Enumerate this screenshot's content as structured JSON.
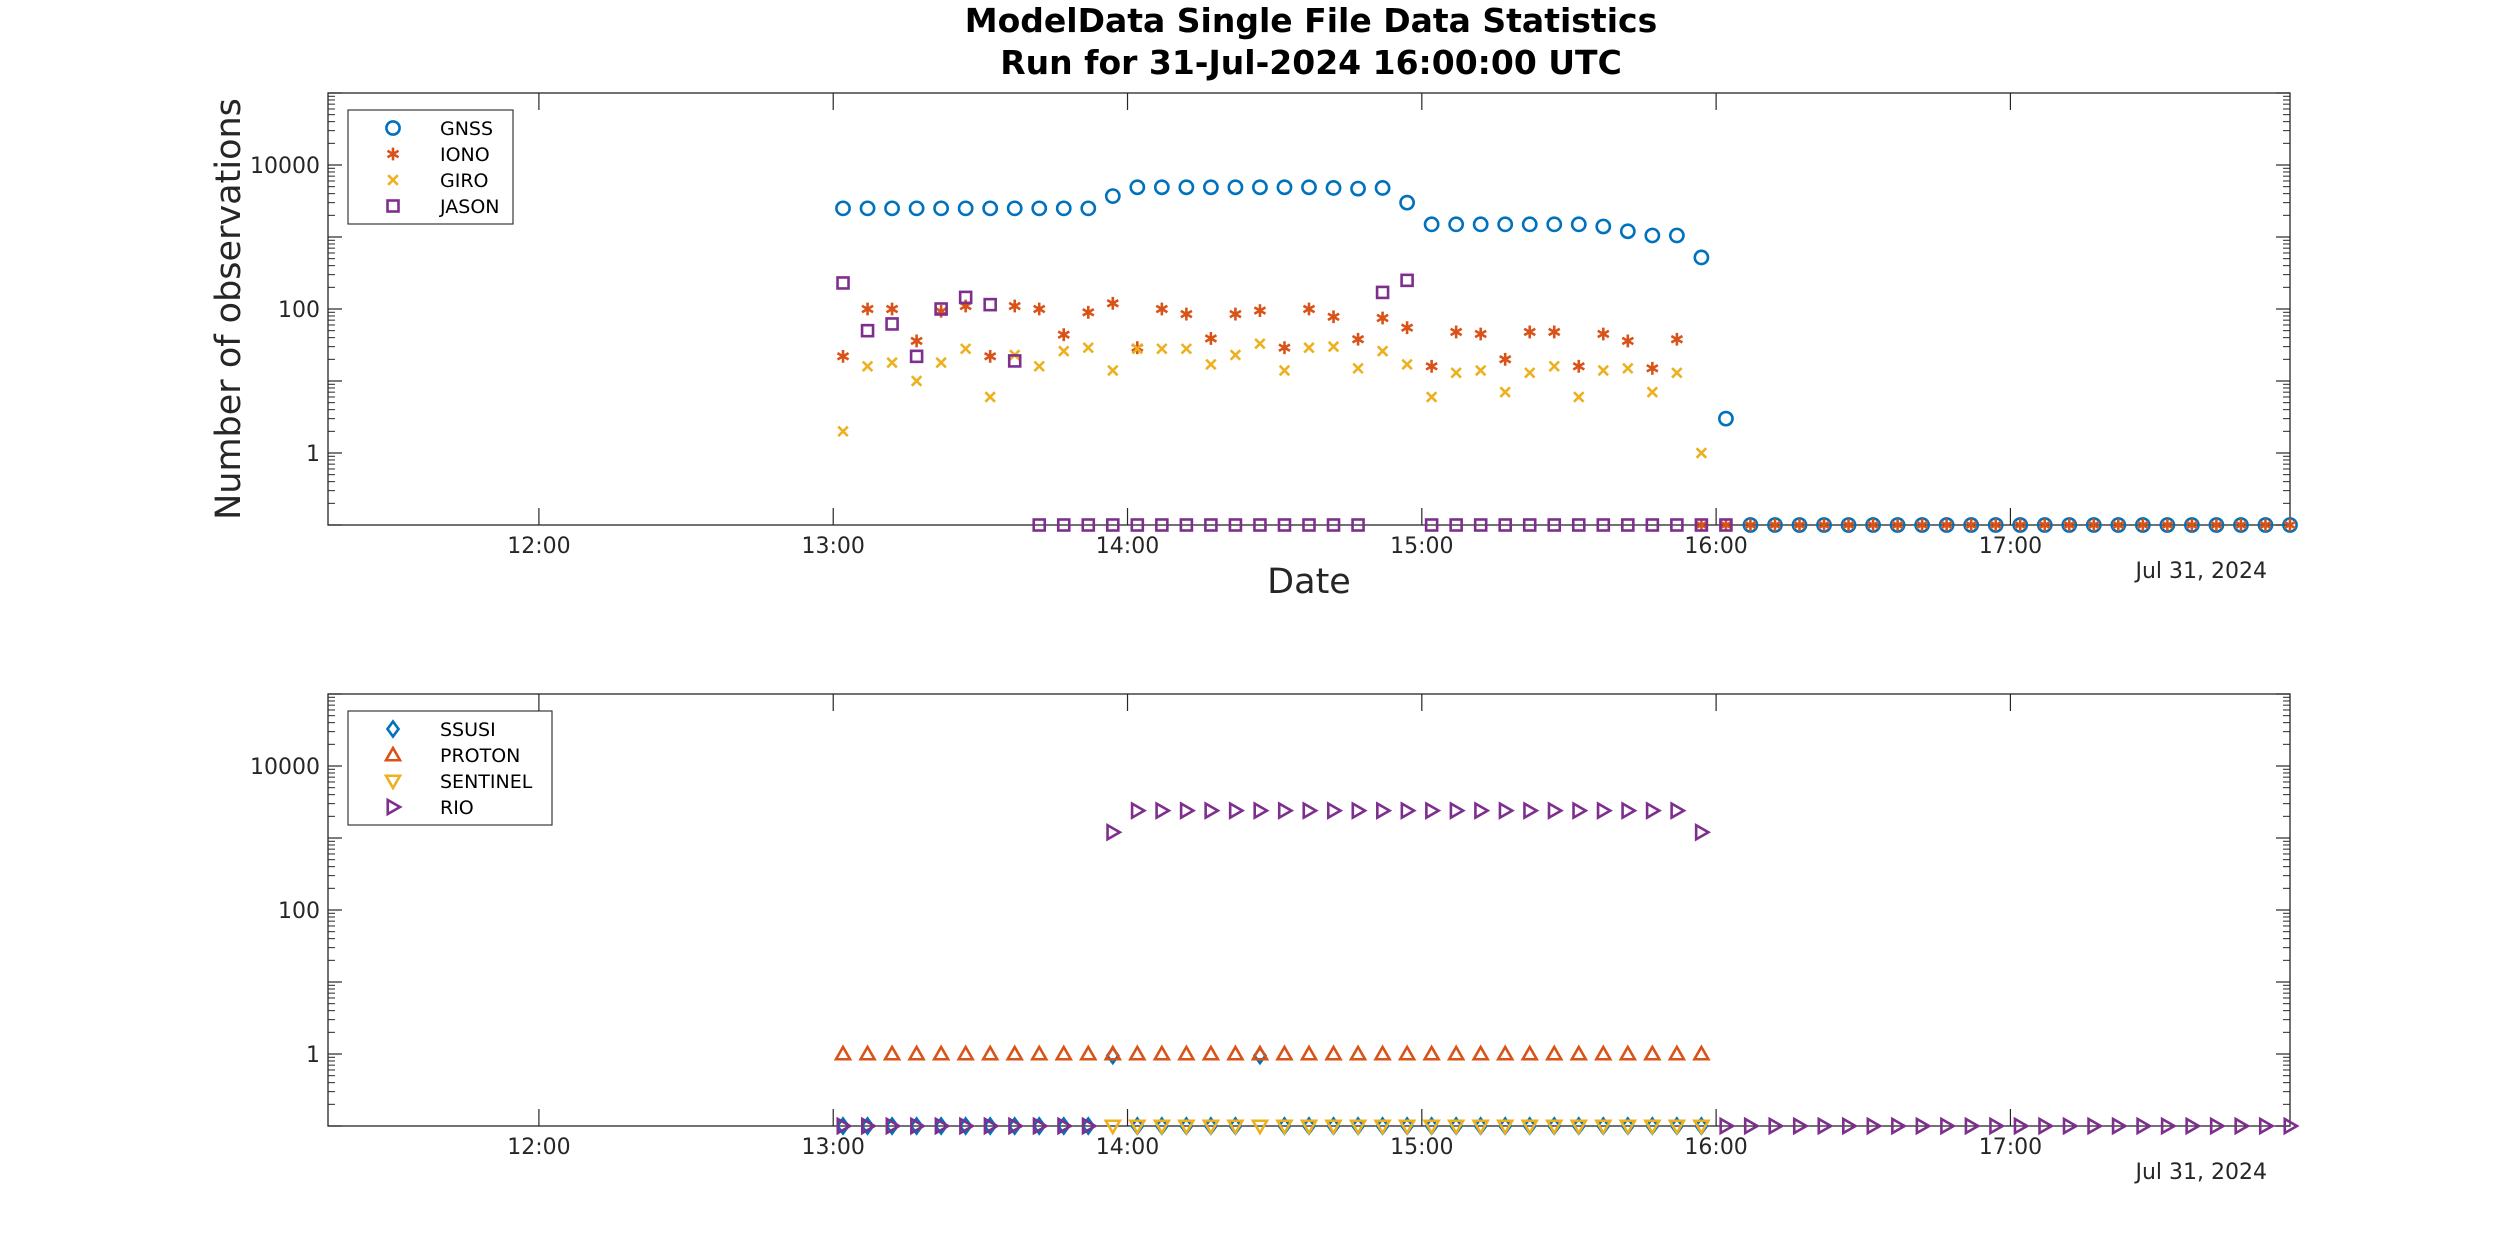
{
  "figure": {
    "title_line1": "ModelData Single File Data Statistics",
    "title_line2": "Run for 31-Jul-2024 16:00:00 UTC"
  },
  "colors": {
    "blue": "#0072BD",
    "orange": "#D95319",
    "yellow": "#EDB120",
    "purple": "#7E2F8E",
    "axis": "#262626"
  },
  "chart_data": [
    {
      "type": "scatter",
      "ylabel": "Number of observations",
      "xlabel": "Date",
      "date_label": "Jul 31, 2024",
      "y_scale": "log",
      "ylim": [
        0.1,
        100000
      ],
      "xlim": [
        "11:17",
        "17:57"
      ],
      "x_ticks": [
        "12:00",
        "13:00",
        "14:00",
        "15:00",
        "16:00",
        "17:00"
      ],
      "y_ticks": [
        "1",
        "100",
        "10000"
      ],
      "legend_position": "top-left",
      "grid": false,
      "series": [
        {
          "name": "GNSS",
          "marker": "circle",
          "color": "#0072BD",
          "x": [
            "13:02",
            "13:07",
            "13:12",
            "13:17",
            "13:22",
            "13:27",
            "13:32",
            "13:37",
            "13:42",
            "13:47",
            "13:52",
            "13:57",
            "14:02",
            "14:07",
            "14:12",
            "14:17",
            "14:22",
            "14:27",
            "14:32",
            "14:37",
            "14:42",
            "14:47",
            "14:52",
            "14:57",
            "15:02",
            "15:07",
            "15:12",
            "15:17",
            "15:22",
            "15:27",
            "15:32",
            "15:37",
            "15:42",
            "15:47",
            "15:52",
            "15:57",
            "16:02",
            "16:07",
            "16:12",
            "16:17",
            "16:22",
            "16:27",
            "16:32",
            "16:37",
            "16:42",
            "16:47",
            "16:52",
            "16:57",
            "17:02",
            "17:07",
            "17:12",
            "17:17",
            "17:22",
            "17:27",
            "17:32",
            "17:37",
            "17:42",
            "17:47",
            "17:52",
            "17:57"
          ],
          "y": [
            2500,
            2500,
            2500,
            2500,
            2500,
            2500,
            2500,
            2500,
            2500,
            2500,
            2500,
            3700,
            4900,
            4900,
            4900,
            4900,
            4900,
            4900,
            4900,
            4900,
            4800,
            4700,
            4800,
            3000,
            1500,
            1500,
            1500,
            1500,
            1500,
            1500,
            1500,
            1400,
            1200,
            1050,
            1050,
            520,
            3,
            0.1,
            0.1,
            0.1,
            0.1,
            0.1,
            0.1,
            0.1,
            0.1,
            0.1,
            0.1,
            0.1,
            0.1,
            0.1,
            0.1,
            0.1,
            0.1,
            0.1,
            0.1,
            0.1,
            0.1,
            0.1,
            0.1,
            0.1
          ]
        },
        {
          "name": "IONO",
          "marker": "asterisk",
          "color": "#D95319",
          "x": [
            "13:02",
            "13:07",
            "13:12",
            "13:17",
            "13:22",
            "13:27",
            "13:32",
            "13:37",
            "13:42",
            "13:47",
            "13:52",
            "13:57",
            "14:02",
            "14:07",
            "14:12",
            "14:17",
            "14:22",
            "14:27",
            "14:32",
            "14:37",
            "14:42",
            "14:47",
            "14:52",
            "14:57",
            "15:02",
            "15:07",
            "15:12",
            "15:17",
            "15:22",
            "15:27",
            "15:32",
            "15:37",
            "15:42",
            "15:47",
            "15:52",
            "15:57",
            "16:02",
            "16:07",
            "16:12",
            "16:17",
            "16:22",
            "16:27",
            "16:32",
            "16:37",
            "16:42",
            "16:47",
            "16:52",
            "16:57",
            "17:02",
            "17:07",
            "17:12",
            "17:17",
            "17:22",
            "17:27",
            "17:32",
            "17:37",
            "17:42",
            "17:47",
            "17:52",
            "17:57"
          ],
          "y": [
            22,
            100,
            100,
            36,
            93,
            110,
            22,
            110,
            100,
            44,
            90,
            120,
            29,
            100,
            85,
            39,
            85,
            95,
            29,
            100,
            78,
            38,
            75,
            55,
            16,
            48,
            45,
            20,
            48,
            48,
            16,
            45,
            36,
            15,
            38,
            0.1,
            0.1,
            0.1,
            0.1,
            0.1,
            0.1,
            0.1,
            0.1,
            0.1,
            0.1,
            0.1,
            0.1,
            0.1,
            0.1,
            0.1,
            0.1,
            0.1,
            0.1,
            0.1,
            0.1,
            0.1,
            0.1,
            0.1,
            0.1,
            0.1
          ]
        },
        {
          "name": "GIRO",
          "marker": "x",
          "color": "#EDB120",
          "x": [
            "13:02",
            "13:07",
            "13:12",
            "13:17",
            "13:22",
            "13:27",
            "13:32",
            "13:37",
            "13:42",
            "13:47",
            "13:52",
            "13:57",
            "14:02",
            "14:07",
            "14:12",
            "14:17",
            "14:22",
            "14:27",
            "14:32",
            "14:37",
            "14:42",
            "14:47",
            "14:52",
            "14:57",
            "15:02",
            "15:07",
            "15:12",
            "15:17",
            "15:22",
            "15:27",
            "15:32",
            "15:37",
            "15:42",
            "15:47",
            "15:52",
            "15:57"
          ],
          "y": [
            2,
            16,
            18,
            10,
            18,
            28,
            6,
            23,
            16,
            26,
            29,
            14,
            28,
            28,
            28,
            17,
            23,
            33,
            14,
            29,
            30,
            15,
            26,
            17,
            6,
            13,
            14,
            7,
            13,
            16,
            6,
            14,
            15,
            7,
            13,
            1
          ]
        },
        {
          "name": "JASON",
          "marker": "square",
          "color": "#7E2F8E",
          "x": [
            "13:02",
            "13:07",
            "13:12",
            "13:17",
            "13:22",
            "13:27",
            "13:32",
            "13:37",
            "13:42",
            "13:47",
            "13:52",
            "13:57",
            "14:02",
            "14:07",
            "14:12",
            "14:17",
            "14:22",
            "14:27",
            "14:32",
            "14:37",
            "14:42",
            "14:47",
            "14:52",
            "14:57",
            "15:02",
            "15:07",
            "15:12",
            "15:17",
            "15:22",
            "15:27",
            "15:32",
            "15:37",
            "15:42",
            "15:47",
            "15:52",
            "15:57",
            "16:02"
          ],
          "y": [
            230,
            50,
            62,
            22,
            100,
            145,
            115,
            19,
            0.1,
            0.1,
            0.1,
            0.1,
            0.1,
            0.1,
            0.1,
            0.1,
            0.1,
            0.1,
            0.1,
            0.1,
            0.1,
            0.1,
            170,
            250,
            0.1,
            0.1,
            0.1,
            0.1,
            0.1,
            0.1,
            0.1,
            0.1,
            0.1,
            0.1,
            0.1,
            0.1,
            0.1
          ]
        }
      ]
    },
    {
      "type": "scatter",
      "ylabel": "",
      "xlabel": "",
      "date_label": "Jul 31, 2024",
      "y_scale": "log",
      "ylim": [
        0.1,
        100000
      ],
      "xlim": [
        "11:17",
        "17:57"
      ],
      "x_ticks": [
        "12:00",
        "13:00",
        "14:00",
        "15:00",
        "16:00",
        "17:00"
      ],
      "y_ticks": [
        "1",
        "100",
        "10000"
      ],
      "legend_position": "top-left",
      "grid": false,
      "series": [
        {
          "name": "SSUSI",
          "marker": "diamond",
          "color": "#0072BD",
          "x": [
            "13:02",
            "13:07",
            "13:12",
            "13:17",
            "13:22",
            "13:27",
            "13:32",
            "13:37",
            "13:42",
            "13:47",
            "13:52",
            "13:57",
            "14:02",
            "14:07",
            "14:12",
            "14:17",
            "14:22",
            "14:27",
            "14:32",
            "14:37",
            "14:42",
            "14:47",
            "14:52",
            "14:57",
            "15:02",
            "15:07",
            "15:12",
            "15:17",
            "15:22",
            "15:27",
            "15:32",
            "15:37",
            "15:42",
            "15:47",
            "15:52",
            "15:57"
          ],
          "y": [
            0.1,
            0.1,
            0.1,
            0.1,
            0.1,
            0.1,
            0.1,
            0.1,
            0.1,
            0.1,
            0.1,
            0.95,
            0.1,
            0.1,
            0.1,
            0.1,
            0.1,
            0.95,
            0.1,
            0.1,
            0.1,
            0.1,
            0.1,
            0.1,
            0.1,
            0.1,
            0.1,
            0.1,
            0.1,
            0.1,
            0.1,
            0.1,
            0.1,
            0.1,
            0.1,
            0.1
          ]
        },
        {
          "name": "PROTON",
          "marker": "triangle-up",
          "color": "#D95319",
          "x": [
            "13:02",
            "13:07",
            "13:12",
            "13:17",
            "13:22",
            "13:27",
            "13:32",
            "13:37",
            "13:42",
            "13:47",
            "13:52",
            "13:57",
            "14:02",
            "14:07",
            "14:12",
            "14:17",
            "14:22",
            "14:27",
            "14:32",
            "14:37",
            "14:42",
            "14:47",
            "14:52",
            "14:57",
            "15:02",
            "15:07",
            "15:12",
            "15:17",
            "15:22",
            "15:27",
            "15:32",
            "15:37",
            "15:42",
            "15:47",
            "15:52",
            "15:57"
          ],
          "y": [
            1,
            1,
            1,
            1,
            1,
            1,
            1,
            1,
            1,
            1,
            1,
            1,
            1,
            1,
            1,
            1,
            1,
            1,
            1,
            1,
            1,
            1,
            1,
            1,
            1,
            1,
            1,
            1,
            1,
            1,
            1,
            1,
            1,
            1,
            1,
            1
          ]
        },
        {
          "name": "SENTINEL",
          "marker": "triangle-down",
          "color": "#EDB120",
          "x": [
            "13:57",
            "14:02",
            "14:07",
            "14:12",
            "14:17",
            "14:22",
            "14:27",
            "14:32",
            "14:37",
            "14:42",
            "14:47",
            "14:52",
            "14:57",
            "15:02",
            "15:07",
            "15:12",
            "15:17",
            "15:22",
            "15:27",
            "15:32",
            "15:37",
            "15:42",
            "15:47",
            "15:52",
            "15:57"
          ],
          "y": [
            0.1,
            0.1,
            0.1,
            0.1,
            0.1,
            0.1,
            0.1,
            0.1,
            0.1,
            0.1,
            0.1,
            0.1,
            0.1,
            0.1,
            0.1,
            0.1,
            0.1,
            0.1,
            0.1,
            0.1,
            0.1,
            0.1,
            0.1,
            0.1,
            0.1
          ]
        },
        {
          "name": "RIO",
          "marker": "triangle-right",
          "color": "#7E2F8E",
          "x": [
            "13:02",
            "13:07",
            "13:12",
            "13:17",
            "13:22",
            "13:27",
            "13:32",
            "13:37",
            "13:42",
            "13:47",
            "13:52",
            "13:57",
            "14:02",
            "14:07",
            "14:12",
            "14:17",
            "14:22",
            "14:27",
            "14:32",
            "14:37",
            "14:42",
            "14:47",
            "14:52",
            "14:57",
            "15:02",
            "15:07",
            "15:12",
            "15:17",
            "15:22",
            "15:27",
            "15:32",
            "15:37",
            "15:42",
            "15:47",
            "15:52",
            "15:57",
            "16:02",
            "16:07",
            "16:12",
            "16:17",
            "16:22",
            "16:27",
            "16:32",
            "16:37",
            "16:42",
            "16:47",
            "16:52",
            "16:57",
            "17:02",
            "17:07",
            "17:12",
            "17:17",
            "17:22",
            "17:27",
            "17:32",
            "17:37",
            "17:42",
            "17:47",
            "17:52",
            "17:57"
          ],
          "y": [
            0.1,
            0.1,
            0.1,
            0.1,
            0.1,
            0.1,
            0.1,
            0.1,
            0.1,
            0.1,
            0.1,
            1200,
            2400,
            2400,
            2400,
            2400,
            2400,
            2400,
            2400,
            2400,
            2400,
            2400,
            2400,
            2400,
            2400,
            2400,
            2400,
            2400,
            2400,
            2400,
            2400,
            2400,
            2400,
            2400,
            2400,
            1200,
            0.1,
            0.1,
            0.1,
            0.1,
            0.1,
            0.1,
            0.1,
            0.1,
            0.1,
            0.1,
            0.1,
            0.1,
            0.1,
            0.1,
            0.1,
            0.1,
            0.1,
            0.1,
            0.1,
            0.1,
            0.1,
            0.1,
            0.1,
            0.1
          ]
        }
      ]
    }
  ]
}
